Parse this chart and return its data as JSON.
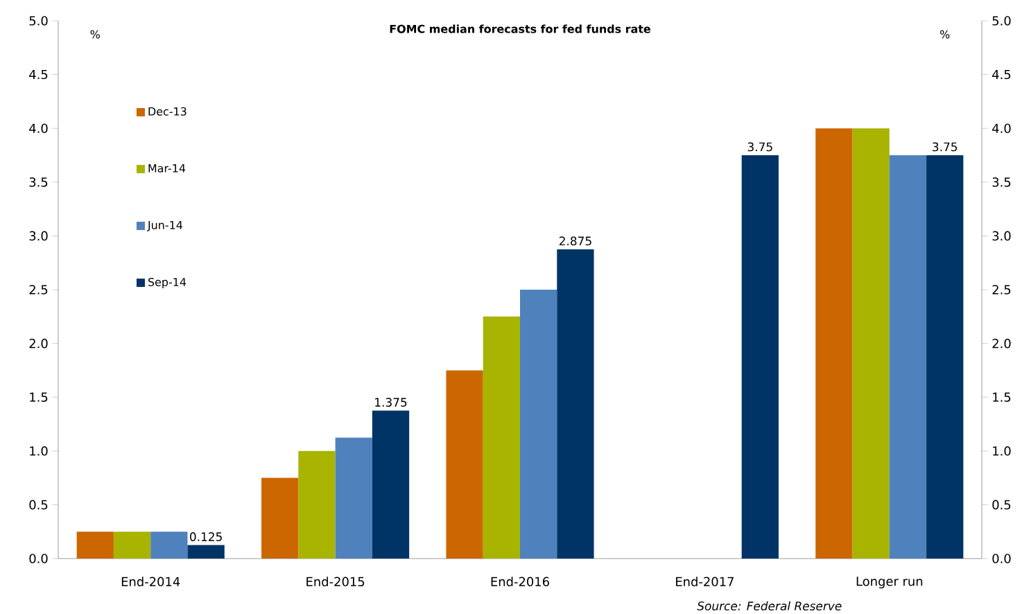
{
  "chart_data": {
    "type": "bar",
    "title": "FOMC median forecasts for fed funds rate",
    "ylabel": "%",
    "y2label": "%",
    "categories": [
      "End-2014",
      "End-2015",
      "End-2016",
      "End-2017",
      "Longer run"
    ],
    "series": [
      {
        "name": "Dec-13",
        "color": "#cc6600",
        "values": [
          0.25,
          0.75,
          1.75,
          null,
          4.0
        ]
      },
      {
        "name": "Mar-14",
        "color": "#a8b400",
        "values": [
          0.25,
          1.0,
          2.25,
          null,
          4.0
        ]
      },
      {
        "name": "Jun-14",
        "color": "#4f81bd",
        "values": [
          0.25,
          1.125,
          2.5,
          null,
          3.75
        ]
      },
      {
        "name": "Sep-14",
        "color": "#003366",
        "values": [
          0.125,
          1.375,
          2.875,
          3.75,
          3.75
        ],
        "value_labels": [
          "0.125",
          "1.375",
          "2.875",
          "3.75",
          "3.75"
        ]
      }
    ],
    "ylim": [
      0,
      5
    ],
    "yticks": [
      {
        "value": 0,
        "label": "0.0"
      },
      {
        "value": 0.5,
        "label": "0.5"
      },
      {
        "value": 1,
        "label": "1.0"
      },
      {
        "value": 1.5,
        "label": "1.5"
      },
      {
        "value": 2,
        "label": "2.0"
      },
      {
        "value": 2.5,
        "label": "2.5"
      },
      {
        "value": 3,
        "label": "3.0"
      },
      {
        "value": 3.5,
        "label": "3.5"
      },
      {
        "value": 4,
        "label": "4.0"
      },
      {
        "value": 4.5,
        "label": "4.5"
      },
      {
        "value": 5,
        "label": "5.0"
      }
    ],
    "y2lim": [
      0,
      5
    ],
    "y2ticks": [
      {
        "value": 0,
        "label": "0.0"
      },
      {
        "value": 0.5,
        "label": "0.5"
      },
      {
        "value": 1,
        "label": "1.0"
      },
      {
        "value": 1.5,
        "label": "1.5"
      },
      {
        "value": 2,
        "label": "2.0"
      },
      {
        "value": 2.5,
        "label": "2.5"
      },
      {
        "value": 3,
        "label": "3.0"
      },
      {
        "value": 3.5,
        "label": "3.5"
      },
      {
        "value": 4,
        "label": "4.0"
      },
      {
        "value": 4.5,
        "label": "4.5"
      },
      {
        "value": 5,
        "label": "5.0"
      }
    ],
    "legend": "top left",
    "grid": false,
    "annotations": [
      "Source: Federal Reserve"
    ]
  }
}
